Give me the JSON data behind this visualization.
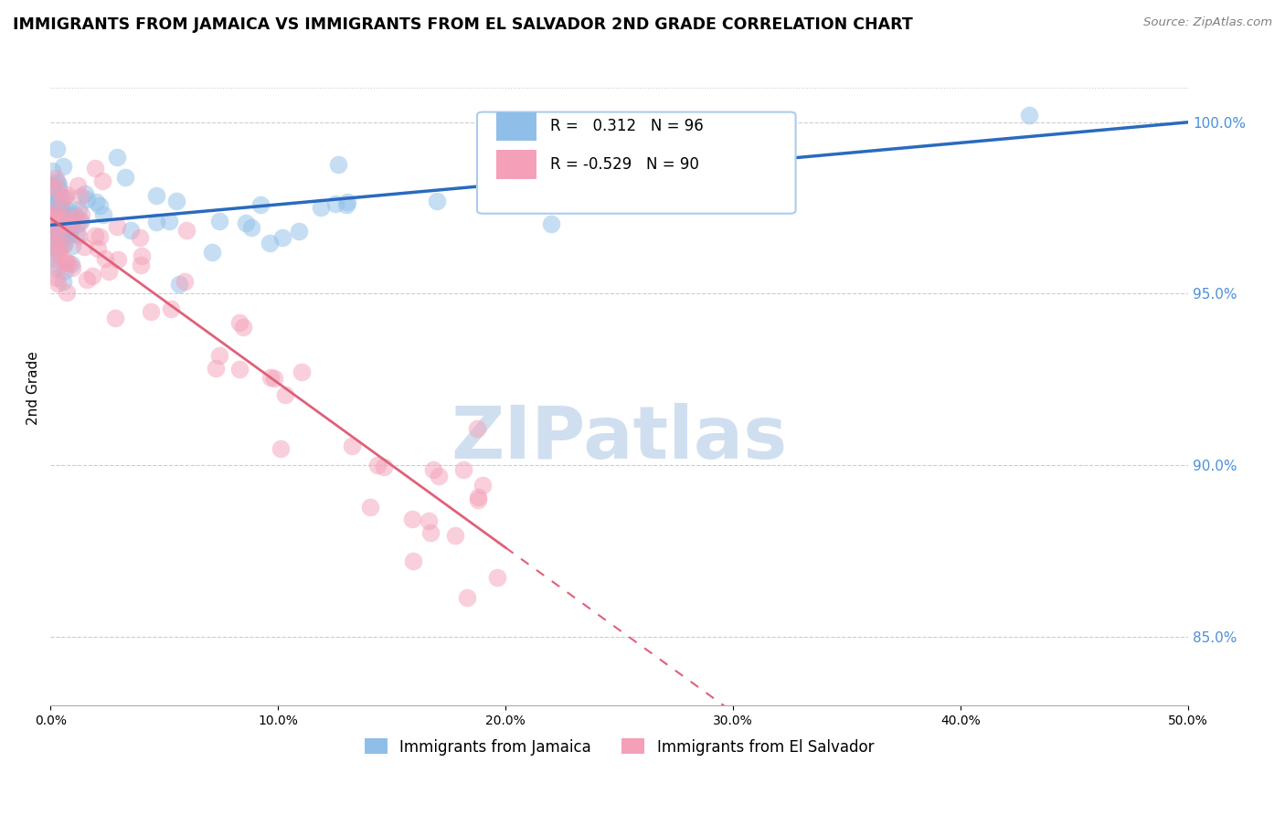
{
  "title": "IMMIGRANTS FROM JAMAICA VS IMMIGRANTS FROM EL SALVADOR 2ND GRADE CORRELATION CHART",
  "source": "Source: ZipAtlas.com",
  "ylabel": "2nd Grade",
  "x_min": 0.0,
  "x_max": 50.0,
  "y_min": 83.0,
  "y_max": 101.5,
  "y_ticks": [
    85.0,
    90.0,
    95.0,
    100.0
  ],
  "y_tick_labels": [
    "85.0%",
    "90.0%",
    "95.0%",
    "100.0%"
  ],
  "jamaica_R": 0.312,
  "jamaica_N": 96,
  "salvador_R": -0.529,
  "salvador_N": 90,
  "jamaica_color": "#8fbfe8",
  "salvador_color": "#f4a0b8",
  "jamaica_line_color": "#2a6abf",
  "salvador_line_color": "#e0607a",
  "background_color": "#ffffff",
  "grid_color": "#cccccc",
  "watermark_color": "#d0dff0",
  "jamaica_line_y0": 97.0,
  "jamaica_line_y1": 100.0,
  "salvador_line_y0": 97.2,
  "salvador_line_y1": 87.6,
  "salvador_solid_end_x": 20.0
}
